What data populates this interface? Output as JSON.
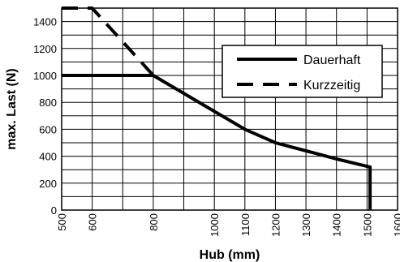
{
  "chart_data": {
    "type": "line",
    "xlabel": "Hub (mm)",
    "ylabel": "max. Last (N)",
    "xlim": [
      500,
      1600
    ],
    "ylim": [
      0,
      1500
    ],
    "x_ticks": [
      500,
      600,
      800,
      1000,
      1100,
      1200,
      1300,
      1400,
      1500,
      1600
    ],
    "y_ticks": [
      0,
      200,
      400,
      600,
      800,
      1000,
      1200,
      1400
    ],
    "x_grid": [
      500,
      600,
      700,
      800,
      900,
      1000,
      1100,
      1200,
      1300,
      1400,
      1500,
      1600
    ],
    "y_grid": [
      0,
      100,
      200,
      300,
      400,
      500,
      600,
      700,
      800,
      900,
      1000,
      1100,
      1200,
      1300,
      1400,
      1500
    ],
    "grid": true,
    "legend_position": "top-right",
    "series": [
      {
        "name": "Dauerhaft",
        "style": "solid",
        "color": "#000000",
        "points": [
          [
            500,
            1000
          ],
          [
            800,
            1000
          ],
          [
            1100,
            600
          ],
          [
            1200,
            500
          ],
          [
            1400,
            380
          ],
          [
            1510,
            320
          ],
          [
            1510,
            0
          ]
        ]
      },
      {
        "name": "Kurzzeitig",
        "style": "dashed",
        "color": "#000000",
        "points": [
          [
            500,
            1500
          ],
          [
            600,
            1500
          ],
          [
            800,
            1000
          ]
        ]
      }
    ]
  }
}
